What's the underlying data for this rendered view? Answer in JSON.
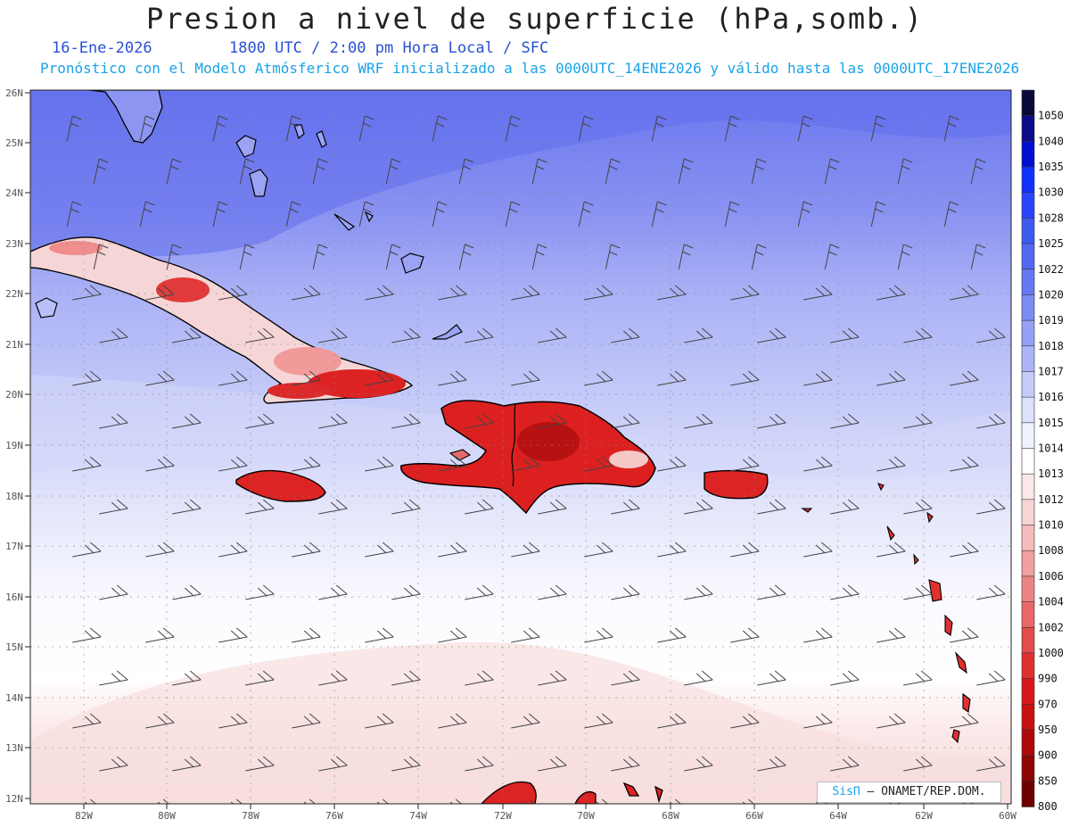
{
  "header": {
    "title": "Presion a nivel de superficie (hPa,somb.)",
    "date": "16-Ene-2026",
    "time_info": "1800 UTC / 2:00 pm Hora Local / SFC",
    "model_info": "Pronóstico con el Modelo Atmósferico WRF inicializado a las 0000UTC_14ENE2026 y válido hasta las  0000UTC_17ENE2026"
  },
  "map": {
    "lat_labels": [
      "26N",
      "25N",
      "24N",
      "23N",
      "22N",
      "21N",
      "20N",
      "19N",
      "18N",
      "17N",
      "16N",
      "15N",
      "14N",
      "13N",
      "12N"
    ],
    "lon_labels": [
      "82W",
      "80W",
      "78W",
      "76W",
      "74W",
      "72W",
      "70W",
      "68W",
      "66W",
      "64W",
      "62W",
      "60W"
    ],
    "colors": {
      "high_pressure": "#6f7cf0",
      "mid_pressure": "#cfd3f7",
      "neutral": "#ffffff",
      "low_pressure_land": "#d8171c"
    }
  },
  "legend": {
    "levels": [
      "1050",
      "1040",
      "1035",
      "1030",
      "1028",
      "1025",
      "1022",
      "1020",
      "1019",
      "1018",
      "1017",
      "1016",
      "1015",
      "1014",
      "1013",
      "1012",
      "1010",
      "1008",
      "1006",
      "1004",
      "1002",
      "1000",
      "990",
      "970",
      "950",
      "900",
      "850",
      "800"
    ],
    "colors": [
      "#0a0a3a",
      "#0b0b8a",
      "#0010d0",
      "#1030ff",
      "#2a45ff",
      "#3d5af0",
      "#5268f2",
      "#6778f3",
      "#7d8bf4",
      "#95a0f6",
      "#adb5f8",
      "#c6ccfa",
      "#dde1fc",
      "#f0f2fe",
      "#ffffff",
      "#fbe9e9",
      "#f8d5d5",
      "#f4bcbc",
      "#f0a0a0",
      "#ec8484",
      "#e86868",
      "#e44c4c",
      "#e03030",
      "#d81818",
      "#c81010",
      "#b00808",
      "#900404",
      "#700000"
    ]
  },
  "credit": {
    "brand": "SisΠ",
    "text": "– ONAMET/REP.DOM."
  }
}
